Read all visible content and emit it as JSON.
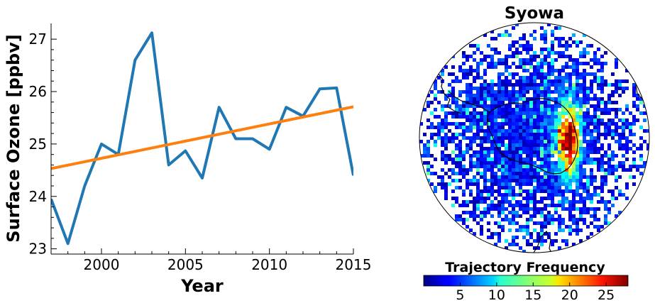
{
  "chart_data": [
    {
      "type": "line",
      "xlabel": "Year",
      "ylabel": "Surface Ozone [ppbv]",
      "xlim": [
        1997,
        2015
      ],
      "ylim": [
        22.9,
        27.3
      ],
      "x_ticks": [
        2000,
        2005,
        2010,
        2015
      ],
      "y_ticks": [
        23,
        24,
        25,
        26,
        27
      ],
      "grid": false,
      "series": [
        {
          "color": "#1f77b4",
          "x": [
            1997,
            1998,
            1999,
            2000,
            2001,
            2002,
            2003,
            2004,
            2005,
            2006,
            2007,
            2008,
            2009,
            2010,
            2011,
            2012,
            2013,
            2014,
            2015
          ],
          "y": [
            23.95,
            23.1,
            24.2,
            25.0,
            24.8,
            26.6,
            27.12,
            24.6,
            24.87,
            24.35,
            25.7,
            25.1,
            25.1,
            24.9,
            25.7,
            25.53,
            26.05,
            26.07,
            24.4
          ]
        },
        {
          "color": "#ff7f0e",
          "x": [
            1997,
            2015
          ],
          "y": [
            24.53,
            25.71
          ]
        }
      ]
    },
    {
      "type": "heatmap",
      "title": "Syowa",
      "projection": "south-polar-stereographic",
      "colorbar": {
        "title": "Trajectory Frequency",
        "colormap": "jet",
        "range": [
          0,
          28
        ],
        "ticks": [
          5,
          10,
          15,
          20,
          25
        ],
        "orientation": "horizontal",
        "placement": "bottom"
      }
    }
  ]
}
